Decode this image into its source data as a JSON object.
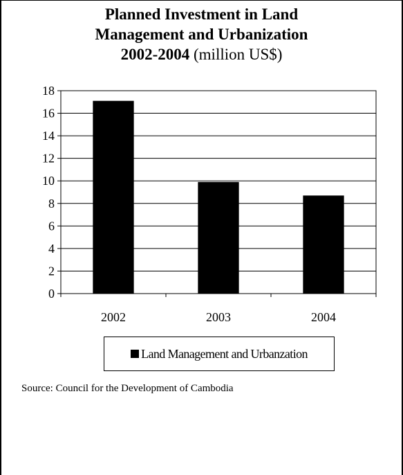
{
  "title": {
    "line1": "Planned Investment in Land",
    "line2": "Management and Urbanization",
    "line3_bold": "2002-2004",
    "line3_rest": " (million US$)"
  },
  "source": "Source: Council for the Development of Cambodia",
  "chart_data": {
    "type": "bar",
    "categories": [
      "2002",
      "2003",
      "2004"
    ],
    "series": [
      {
        "name": "Land Management and Urbanzation",
        "values": [
          17.1,
          9.9,
          8.7
        ],
        "color": "#000000"
      }
    ],
    "ylim": [
      0,
      18
    ],
    "yticks": [
      0,
      2,
      4,
      6,
      8,
      10,
      12,
      14,
      16,
      18
    ],
    "grid": true,
    "legend": "bottom",
    "xlabel": "",
    "ylabel": ""
  }
}
